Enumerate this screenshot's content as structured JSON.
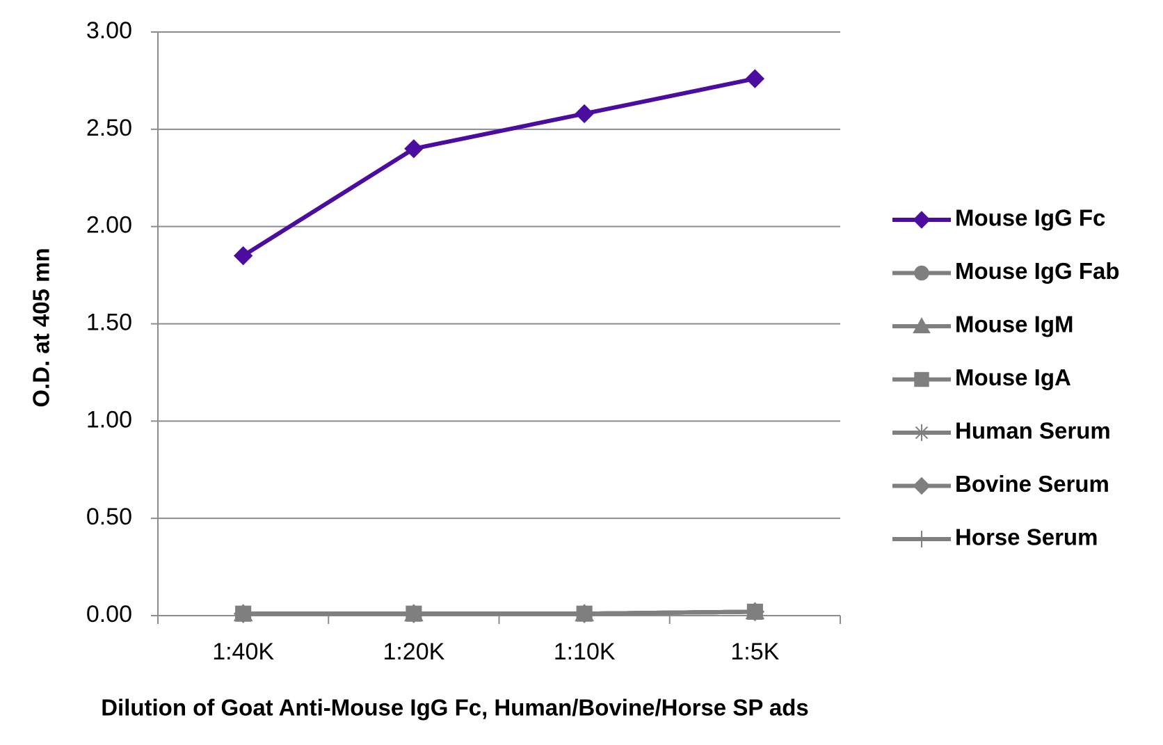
{
  "chart_data": {
    "type": "line",
    "x_label": "Dilution of Goat Anti-Mouse IgG Fc, Human/Bovine/Horse SP ads",
    "y_label": "O.D. at 405 mn",
    "categories": [
      "1:40K",
      "1:20K",
      "1:10K",
      "1:5K"
    ],
    "ylim": [
      0,
      3
    ],
    "yticks": [
      {
        "value": 0,
        "label": "0.00"
      },
      {
        "value": 0.5,
        "label": "0.50"
      },
      {
        "value": 1,
        "label": "1.00"
      },
      {
        "value": 1.5,
        "label": "1.50"
      },
      {
        "value": 2,
        "label": "2.00"
      },
      {
        "value": 2.5,
        "label": "2.50"
      },
      {
        "value": 3,
        "label": "3.00"
      }
    ],
    "grid": true,
    "legend": "right",
    "series": [
      {
        "name": "Mouse IgG Fc",
        "color": "#4b0ca0",
        "marker": "diamond",
        "values": [
          1.85,
          2.4,
          2.58,
          2.76
        ]
      },
      {
        "name": "Mouse IgG Fab",
        "color": "#7f7f7f",
        "marker": "circle",
        "values": [
          0.01,
          0.01,
          0.01,
          0.02
        ]
      },
      {
        "name": "Mouse IgM",
        "color": "#7f7f7f",
        "marker": "triangle",
        "values": [
          0.01,
          0.01,
          0.01,
          0.02
        ]
      },
      {
        "name": "Mouse IgA",
        "color": "#7f7f7f",
        "marker": "square",
        "values": [
          0.01,
          0.01,
          0.01,
          0.02
        ]
      },
      {
        "name": "Human Serum",
        "color": "#7f7f7f",
        "marker": "star",
        "values": [
          0.01,
          0.01,
          0.01,
          0.02
        ]
      },
      {
        "name": "Bovine Serum",
        "color": "#7f7f7f",
        "marker": "diamond",
        "values": [
          0.01,
          0.01,
          0.01,
          0.02
        ]
      },
      {
        "name": "Horse Serum",
        "color": "#7f7f7f",
        "marker": "plus",
        "values": [
          0.01,
          0.01,
          0.01,
          0.02
        ]
      }
    ]
  }
}
